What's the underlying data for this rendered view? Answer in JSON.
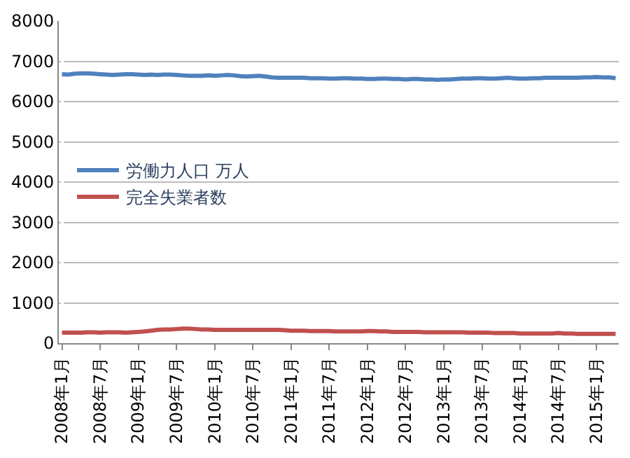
{
  "chart_data": {
    "type": "line",
    "categories": [
      "2008年1月",
      null,
      null,
      null,
      null,
      null,
      "2008年7月",
      null,
      null,
      null,
      null,
      null,
      "2009年1月",
      null,
      null,
      null,
      null,
      null,
      "2009年7月",
      null,
      null,
      null,
      null,
      null,
      "2010年1月",
      null,
      null,
      null,
      null,
      null,
      "2010年7月",
      null,
      null,
      null,
      null,
      null,
      "2011年1月",
      null,
      null,
      null,
      null,
      null,
      "2011年7月",
      null,
      null,
      null,
      null,
      null,
      "2012年1月",
      null,
      null,
      null,
      null,
      null,
      "2012年7月",
      null,
      null,
      null,
      null,
      null,
      "2013年1月",
      null,
      null,
      null,
      null,
      null,
      "2013年7月",
      null,
      null,
      null,
      null,
      null,
      "2014年1月",
      null,
      null,
      null,
      null,
      null,
      "2014年7月",
      null,
      null,
      null,
      null,
      null,
      "2015年1月",
      null,
      null,
      null
    ],
    "series": [
      {
        "name": "労働力人口 万人",
        "color": "#4f81bd",
        "values": [
          6680,
          6670,
          6690,
          6700,
          6700,
          6690,
          6680,
          6670,
          6660,
          6670,
          6680,
          6680,
          6670,
          6660,
          6670,
          6660,
          6670,
          6670,
          6660,
          6650,
          6640,
          6640,
          6640,
          6650,
          6640,
          6650,
          6660,
          6650,
          6630,
          6620,
          6630,
          6640,
          6620,
          6600,
          6590,
          6590,
          6590,
          6590,
          6590,
          6580,
          6580,
          6580,
          6570,
          6570,
          6580,
          6580,
          6570,
          6570,
          6560,
          6560,
          6570,
          6570,
          6560,
          6560,
          6550,
          6560,
          6560,
          6550,
          6550,
          6540,
          6550,
          6550,
          6560,
          6570,
          6570,
          6580,
          6580,
          6570,
          6570,
          6580,
          6590,
          6580,
          6570,
          6570,
          6580,
          6580,
          6590,
          6590,
          6590,
          6590,
          6590,
          6590,
          6600,
          6600,
          6610,
          6600,
          6600,
          6580
        ]
      },
      {
        "name": "完全失業者数",
        "color": "#c0504d",
        "values": [
          260,
          260,
          260,
          260,
          270,
          270,
          260,
          270,
          270,
          270,
          260,
          270,
          280,
          290,
          310,
          330,
          340,
          340,
          350,
          360,
          360,
          350,
          340,
          340,
          330,
          330,
          330,
          330,
          330,
          330,
          330,
          330,
          330,
          330,
          330,
          320,
          310,
          310,
          310,
          300,
          300,
          300,
          300,
          290,
          290,
          290,
          290,
          290,
          300,
          300,
          290,
          290,
          280,
          280,
          280,
          280,
          280,
          270,
          270,
          270,
          270,
          270,
          270,
          270,
          260,
          260,
          260,
          260,
          250,
          250,
          250,
          250,
          240,
          240,
          240,
          240,
          240,
          240,
          250,
          240,
          240,
          230,
          230,
          230,
          230,
          230,
          230,
          230
        ]
      }
    ],
    "ylim": [
      0,
      8000
    ],
    "yticks": [
      0,
      1000,
      2000,
      3000,
      4000,
      5000,
      6000,
      7000,
      8000
    ],
    "grid": "y",
    "legend": "left",
    "marker": "none",
    "line_style": "solid"
  }
}
